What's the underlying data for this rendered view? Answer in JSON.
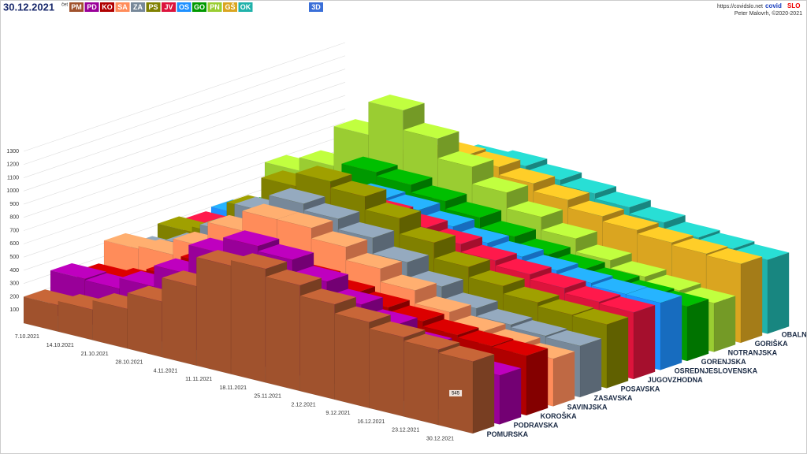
{
  "header": {
    "date": "30.12.2021",
    "weekday": "čet",
    "mode_button": "3D",
    "url": "https://covidslo.net",
    "brand_prefix": "covid",
    "brand_suffix": "SLO",
    "author": "Peter Malovrh, ©2020-2021"
  },
  "chart_data": {
    "type": "bar3d",
    "categories": [
      "7.10.2021",
      "14.10.2021",
      "21.10.2021",
      "28.10.2021",
      "4.11.2021",
      "11.11.2021",
      "18.11.2021",
      "25.11.2021",
      "2.12.2021",
      "9.12.2021",
      "16.12.2021",
      "23.12.2021",
      "30.12.2021"
    ],
    "ylim": [
      0,
      1300
    ],
    "yticks": [
      100,
      200,
      300,
      400,
      500,
      600,
      700,
      800,
      900,
      1000,
      1100,
      1200,
      1300
    ],
    "grid": true,
    "series": [
      {
        "name": "POMURSKA",
        "short": "PM",
        "color": "#a0522d",
        "values": [
          200,
          230,
          300,
          420,
          600,
          820,
          860,
          800,
          720,
          650,
          600,
          570,
          545
        ]
      },
      {
        "name": "PODRAVSKA",
        "short": "PD",
        "color": "#990099",
        "values": [
          330,
          320,
          400,
          560,
          780,
          900,
          860,
          760,
          650,
          560,
          470,
          420,
          371
        ]
      },
      {
        "name": "KOROŠKA",
        "short": "KO",
        "color": "#b00000",
        "values": [
          260,
          290,
          400,
          560,
          700,
          720,
          650,
          600,
          560,
          520,
          480,
          460,
          452
        ]
      },
      {
        "name": "SAVINJSKA",
        "short": "SA",
        "color": "#ff8c5a",
        "values": [
          420,
          440,
          560,
          750,
          900,
          900,
          820,
          720,
          620,
          520,
          440,
          400,
          360
        ]
      },
      {
        "name": "ZASAVSKA",
        "short": "ZA",
        "color": "#778899",
        "values": [
          330,
          420,
          600,
          820,
          950,
          900,
          820,
          700,
          580,
          480,
          420,
          400,
          388
        ]
      },
      {
        "name": "POSAVSKA",
        "short": "PS",
        "color": "#808000",
        "values": [
          410,
          450,
          700,
          950,
          1050,
          1000,
          900,
          780,
          660,
          580,
          520,
          490,
          482
        ]
      },
      {
        "name": "JUGOVZHODNA",
        "short": "JV",
        "color": "#dc143c",
        "values": [
          380,
          420,
          580,
          820,
          850,
          800,
          760,
          700,
          640,
          600,
          560,
          520,
          505
        ]
      },
      {
        "name": "OSREDNJESLOVENSKA",
        "short": "OS",
        "color": "#1e90ff",
        "values": [
          400,
          450,
          560,
          700,
          780,
          760,
          700,
          640,
          600,
          560,
          530,
          510,
          508
        ]
      },
      {
        "name": "GORENJSKA",
        "short": "GO",
        "color": "#009900",
        "values": [
          350,
          420,
          620,
          850,
          820,
          760,
          700,
          620,
          550,
          500,
          460,
          430,
          413
        ]
      },
      {
        "name": "NOTRANJSKA",
        "short": "PN",
        "color": "#9acd32",
        "values": [
          600,
          700,
          1000,
          1250,
          1100,
          950,
          820,
          700,
          600,
          500,
          440,
          400,
          369
        ]
      },
      {
        "name": "GORIŠKA",
        "short": "GŠ",
        "color": "#daa520",
        "values": [
          350,
          420,
          600,
          800,
          900,
          880,
          820,
          760,
          700,
          660,
          630,
          610,
          597
        ]
      },
      {
        "name": "OBALNA",
        "short": "OK",
        "color": "#20b2aa",
        "values": [
          380,
          430,
          560,
          700,
          800,
          820,
          780,
          740,
          700,
          650,
          600,
          580,
          560
        ]
      }
    ]
  }
}
